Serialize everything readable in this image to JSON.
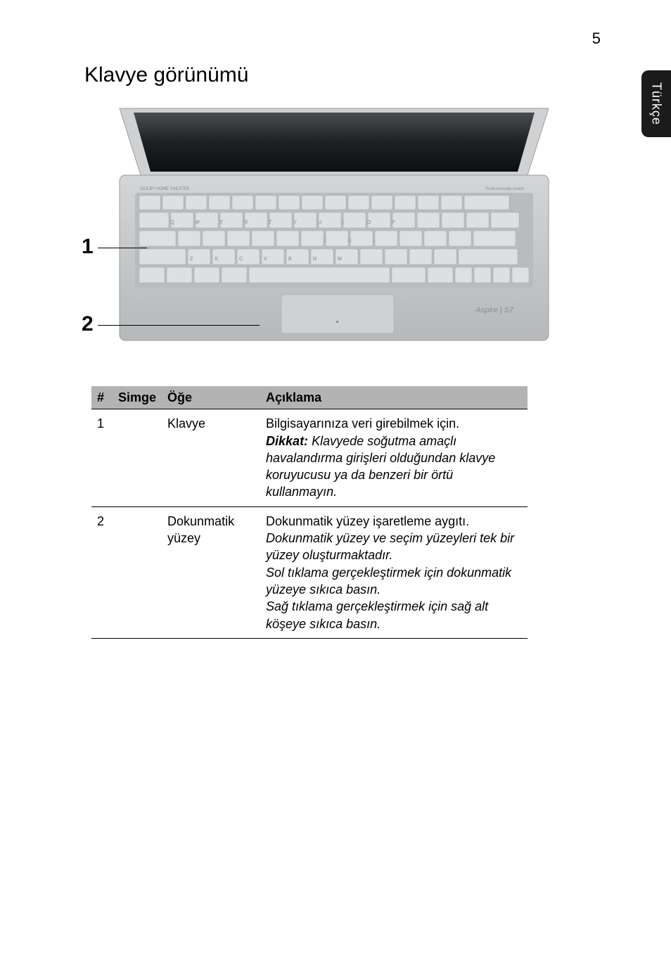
{
  "page_number": "5",
  "side_tab": "Türkçe",
  "title": "Klavye görünümü",
  "illustration": {
    "callouts": [
      {
        "n": "1",
        "line_w": 70
      },
      {
        "n": "2",
        "line_w": 230
      }
    ],
    "laptop": {
      "body_color": "#c6c9ca",
      "screen_color": "#2c2f31",
      "keyboard_bg": "#b9bcbd",
      "key_color": "#dedfe0",
      "key_text_color": "#8a8d8e",
      "trackpad_color": "#cfd1d2",
      "brand_text": "Aspire | S7",
      "top_strip_label_left": "DOLBY HOME THEATER",
      "top_strip_label_right": "Professionally tuned"
    }
  },
  "table": {
    "headers": {
      "num": "#",
      "icon": "Simge",
      "item": "Öğe",
      "desc": "Açıklama"
    },
    "rows": [
      {
        "num": "1",
        "item": "Klavye",
        "desc_plain": "Bilgisayarınıza veri girebilmek için.",
        "desc_emph_label": "Dikkat:",
        "desc_emph_rest": " Klavyede soğutma amaçlı havalandırma girişleri olduğundan klavye koruyucusu ya da benzeri bir örtü kullanmayın."
      },
      {
        "num": "2",
        "item_line1": "Dokunmatik",
        "item_line2": "yüzey",
        "desc_plain": "Dokunmatik yüzey işaretleme aygıtı.",
        "desc_em1": "Dokunmatik yüzey ve seçim yüzeyleri tek bir yüzey oluşturmaktadır.",
        "desc_em2": "Sol tıklama gerçekleştirmek için dokunmatik yüzeye sıkıca basın.",
        "desc_em3": "Sağ tıklama gerçekleştirmek için sağ alt köşeye sıkıca basın."
      }
    ]
  }
}
